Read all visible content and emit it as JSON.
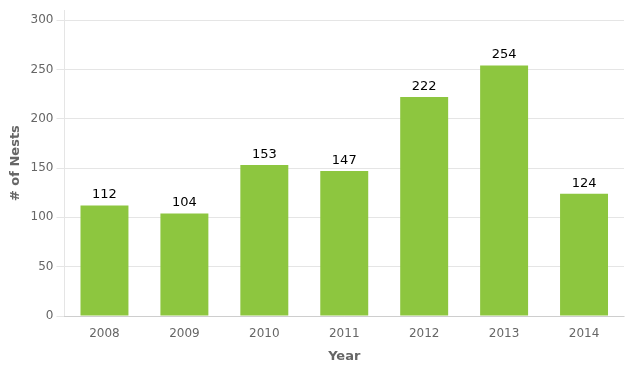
{
  "chart_data": {
    "type": "bar",
    "categories": [
      "2008",
      "2009",
      "2010",
      "2011",
      "2012",
      "2013",
      "2014"
    ],
    "values": [
      112,
      104,
      153,
      147,
      222,
      254,
      124
    ],
    "color": "#8dc63f",
    "xlabel": "Year",
    "ylabel": "# of Nests",
    "ylim": [
      0,
      310
    ],
    "yticks": [
      0,
      50,
      100,
      150,
      200,
      250,
      300
    ],
    "grid": true,
    "data_labels": true
  }
}
